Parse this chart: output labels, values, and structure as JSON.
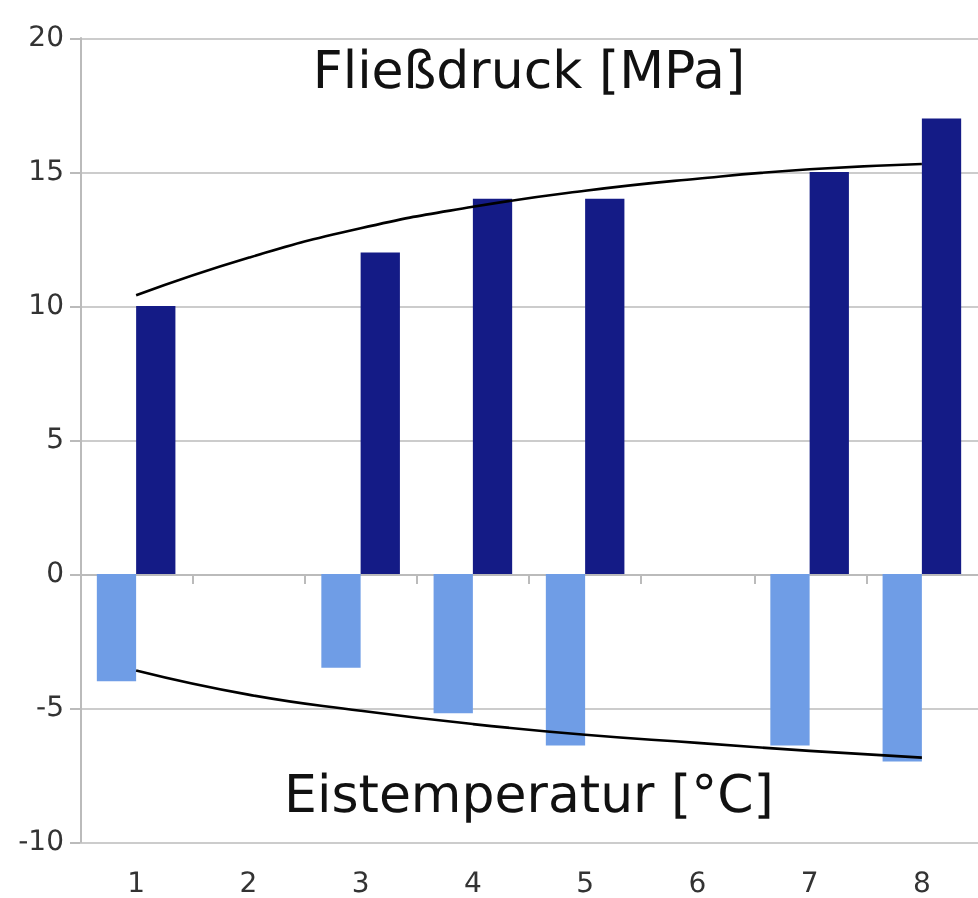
{
  "chart_data": {
    "type": "bar",
    "categories": [
      "1",
      "2",
      "3",
      "4",
      "5",
      "6",
      "7",
      "8"
    ],
    "series": [
      {
        "name": "Eistemperatur [°C]",
        "color": "#6f9de6",
        "values": [
          -4,
          null,
          -3.5,
          -5.2,
          -6.4,
          null,
          -6.4,
          -7
        ]
      },
      {
        "name": "Fließdruck [MPa]",
        "color": "#141b86",
        "values": [
          10,
          null,
          12,
          14,
          14,
          null,
          15,
          17
        ]
      },
      {
        "type": "line",
        "color": "#000000",
        "marker": "none",
        "values": [
          -3.6,
          -4.5,
          -5.1,
          -5.6,
          -6.0,
          -6.3,
          -6.6,
          -6.85
        ]
      },
      {
        "type": "line",
        "color": "#000000",
        "marker": "none",
        "values": [
          10.4,
          11.8,
          12.9,
          13.7,
          14.3,
          14.75,
          15.1,
          15.3
        ]
      }
    ],
    "ylim": [
      -10,
      20
    ],
    "yticks": [
      -10,
      -5,
      0,
      5,
      10,
      15,
      20
    ],
    "grid": "y",
    "legend": false
  }
}
